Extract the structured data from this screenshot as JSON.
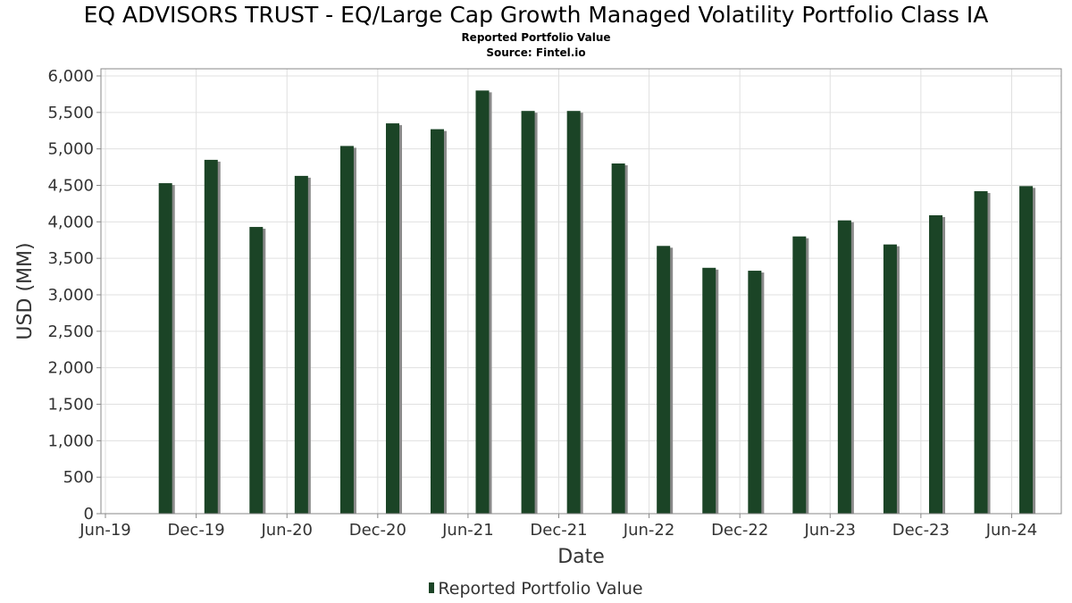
{
  "title": "EQ ADVISORS TRUST - EQ/Large Cap Growth Managed Volatility Portfolio Class IA",
  "subtitle": "Reported Portfolio Value",
  "source": "Source: Fintel.io",
  "colors": {
    "bar": "#1b4426",
    "shadow": "#8a8a8a",
    "grid": "#e0e0e0",
    "axis": "#888888"
  },
  "chart_data": {
    "type": "bar",
    "title": "EQ ADVISORS TRUST - EQ/Large Cap Growth Managed Volatility Portfolio Class IA",
    "subtitle": "Reported Portfolio Value",
    "xlabel": "Date",
    "ylabel": "USD (MM)",
    "xlim": [
      "2019-06-01",
      "2024-08-31"
    ],
    "ylim": [
      0,
      6000
    ],
    "yticks": [
      0,
      500,
      1000,
      1500,
      2000,
      2500,
      3000,
      3500,
      4000,
      4500,
      5000,
      5500,
      6000
    ],
    "ytick_labels": [
      "0",
      "500",
      "1,000",
      "1,500",
      "2,000",
      "2,500",
      "3,000",
      "3,500",
      "4,000",
      "4,500",
      "5,000",
      "5,500",
      "6,000"
    ],
    "xticks": [
      {
        "date": "2019-06-01",
        "label": "Jun-19"
      },
      {
        "date": "2019-12-01",
        "label": "Dec-19"
      },
      {
        "date": "2020-06-01",
        "label": "Jun-20"
      },
      {
        "date": "2020-12-01",
        "label": "Dec-20"
      },
      {
        "date": "2021-06-01",
        "label": "Jun-21"
      },
      {
        "date": "2021-12-01",
        "label": "Dec-21"
      },
      {
        "date": "2022-06-01",
        "label": "Jun-22"
      },
      {
        "date": "2022-12-01",
        "label": "Dec-22"
      },
      {
        "date": "2023-06-01",
        "label": "Jun-23"
      },
      {
        "date": "2023-12-01",
        "label": "Dec-23"
      },
      {
        "date": "2024-06-01",
        "label": "Jun-24"
      }
    ],
    "grid": true,
    "legend_position": "bottom-center",
    "series": [
      {
        "name": "Reported Portfolio Value",
        "x": [
          "2019-09-30",
          "2019-12-31",
          "2020-03-31",
          "2020-06-30",
          "2020-09-30",
          "2020-12-31",
          "2021-03-31",
          "2021-06-30",
          "2021-09-30",
          "2021-12-31",
          "2022-03-31",
          "2022-06-30",
          "2022-09-30",
          "2022-12-31",
          "2023-03-31",
          "2023-06-30",
          "2023-09-30",
          "2023-12-31",
          "2024-03-31",
          "2024-06-30"
        ],
        "values": [
          4530,
          4850,
          3930,
          4630,
          5040,
          5350,
          5270,
          5800,
          5520,
          5520,
          4800,
          3670,
          3370,
          3330,
          3800,
          4020,
          3690,
          4090,
          4420,
          4490
        ]
      }
    ]
  }
}
